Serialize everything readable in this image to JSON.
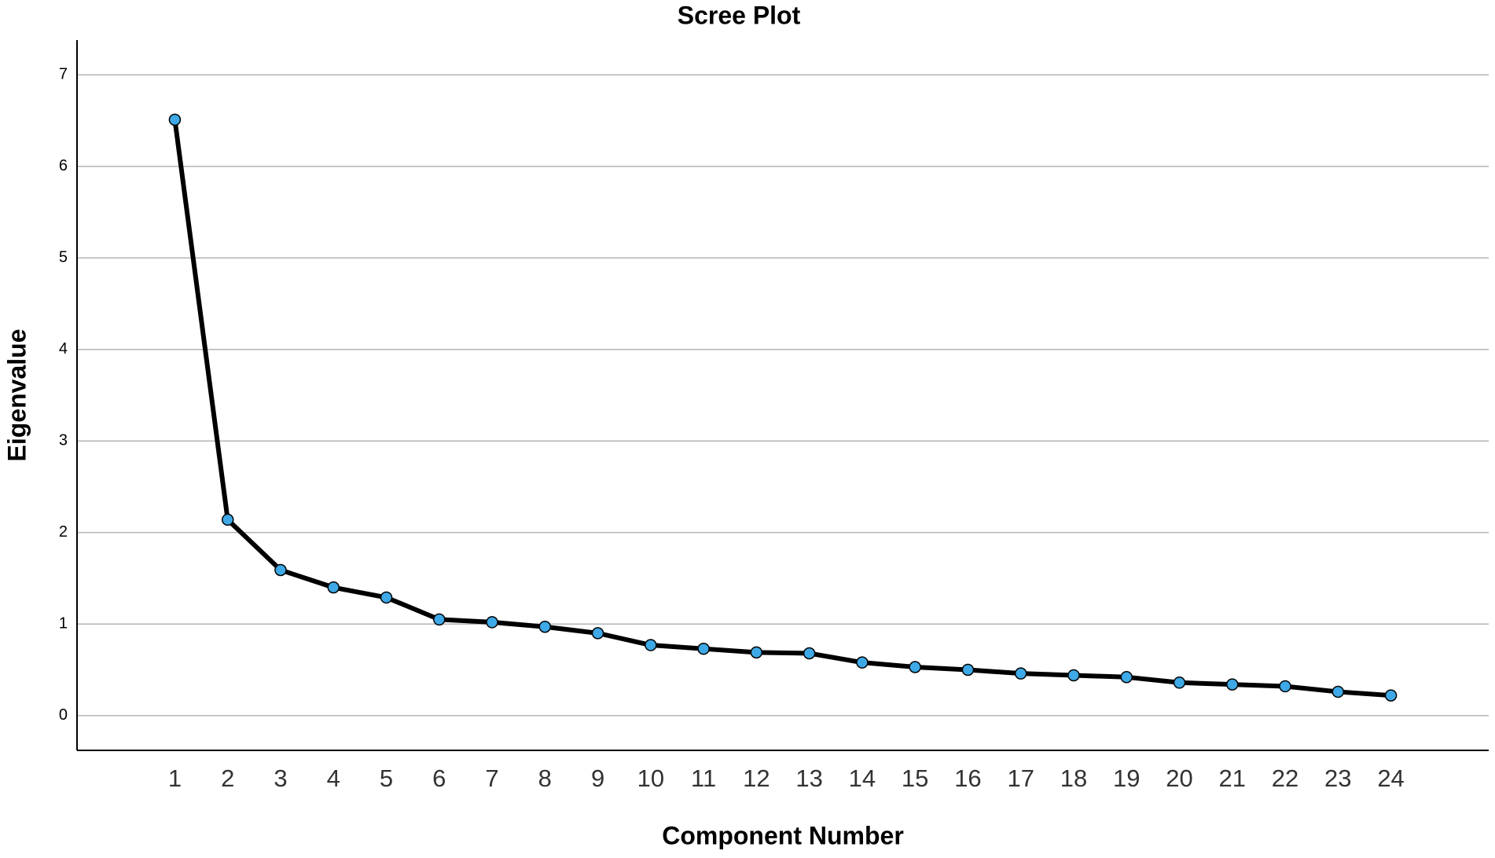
{
  "chart_data": {
    "type": "line",
    "title": "Scree Plot",
    "x_label": "Component Number",
    "y_label": "Eigenvalue",
    "x": [
      1,
      2,
      3,
      4,
      5,
      6,
      7,
      8,
      9,
      10,
      11,
      12,
      13,
      14,
      15,
      16,
      17,
      18,
      19,
      20,
      21,
      22,
      23,
      24
    ],
    "series": [
      {
        "name": "Eigenvalue",
        "color": "#000000",
        "marker_color": "#3ea9e6",
        "values": [
          6.51,
          2.14,
          1.59,
          1.4,
          1.29,
          1.05,
          1.02,
          0.97,
          0.9,
          0.77,
          0.73,
          0.69,
          0.68,
          0.58,
          0.53,
          0.5,
          0.46,
          0.44,
          0.42,
          0.36,
          0.34,
          0.32,
          0.26,
          0.22
        ]
      }
    ],
    "xlim": [
      -0.85,
      25.85
    ],
    "xticks": [
      1,
      2,
      3,
      4,
      5,
      6,
      7,
      8,
      9,
      10,
      11,
      12,
      13,
      14,
      15,
      16,
      17,
      18,
      19,
      20,
      21,
      22,
      23,
      24
    ],
    "ylim": [
      -0.38,
      7.38
    ],
    "yticks": [
      0,
      1,
      2,
      3,
      4,
      5,
      6,
      7
    ],
    "grid": true
  }
}
